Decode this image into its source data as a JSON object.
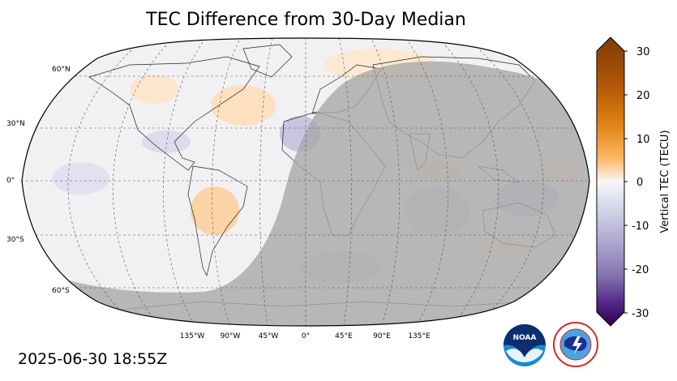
{
  "title": "TEC Difference from 30-Day Median",
  "timestamp": "2025-06-30 18:55Z",
  "map": {
    "projection": "Robinson",
    "center_longitude": 0,
    "day_night_terminator": true,
    "night_shade_color": "#a9a9a9",
    "lat_labels": [
      "60°N",
      "30°N",
      "0°",
      "30°S",
      "60°S"
    ],
    "lon_labels": [
      "135°W",
      "90°W",
      "45°W",
      "0°",
      "45°E",
      "90°E",
      "135°E"
    ],
    "graticule_style": "dashed"
  },
  "colorbar": {
    "label": "Vertical TEC (TECU)",
    "ticks": [
      "30",
      "20",
      "10",
      "0",
      "-10",
      "-20",
      "-30"
    ],
    "range": [
      -30,
      30
    ],
    "colormap": "PuOr_r",
    "colors": {
      "max": "#7f3b08",
      "high": "#e08214",
      "mid_high": "#fdb863",
      "zero": "#f7f7f7",
      "mid_low": "#b2abd2",
      "low": "#8073ac",
      "min": "#2d004b"
    }
  },
  "logos": {
    "noaa_text": "NOAA",
    "nws_text": "NATIONAL WEATHER SERVICE"
  }
}
